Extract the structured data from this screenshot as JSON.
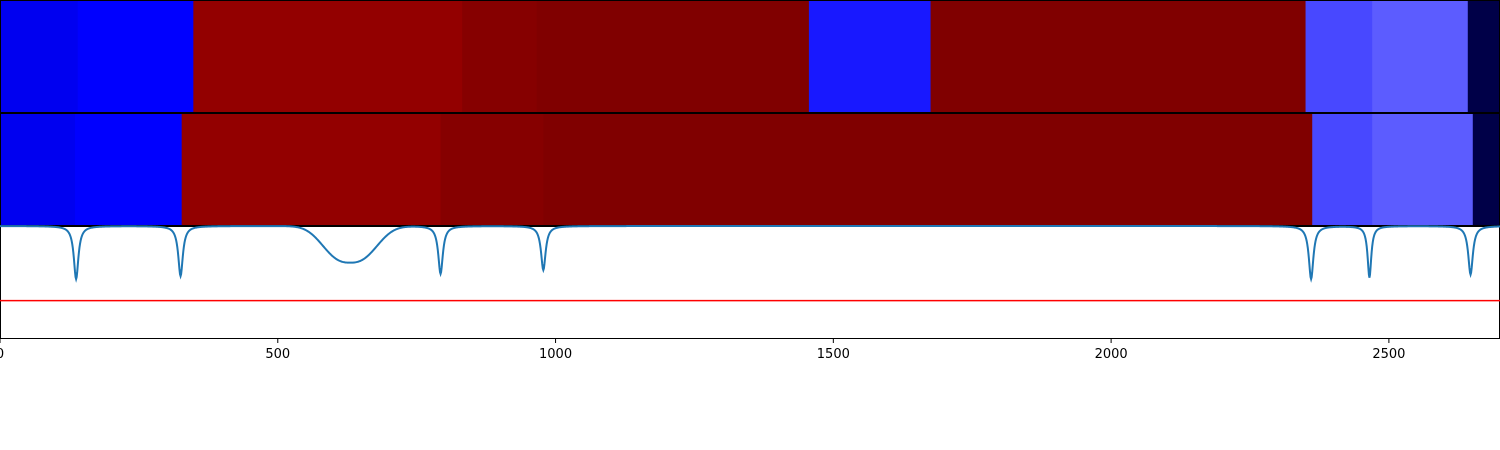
{
  "chart_data": {
    "type": "heatmap",
    "title": "",
    "xlabel": "",
    "ylabel": "",
    "xlim": [
      0,
      2700
    ],
    "x_ticks": [
      0,
      500,
      1000,
      1500,
      2000,
      2500
    ],
    "x_tick_labels": [
      "0",
      "500",
      "1000",
      "1500",
      "2000",
      "2500"
    ],
    "grid": false,
    "colors": {
      "line": "#1f77b4",
      "hline": "#ff0000",
      "border": "#000000"
    },
    "heatmap_rows": [
      {
        "segments": [
          {
            "x0": 0,
            "x1": 140,
            "color": "#0000f0"
          },
          {
            "x0": 140,
            "x1": 348,
            "color": "#0000ff"
          },
          {
            "x0": 348,
            "x1": 832,
            "color": "#930000"
          },
          {
            "x0": 832,
            "x1": 966,
            "color": "#860000"
          },
          {
            "x0": 966,
            "x1": 1456,
            "color": "#800000"
          },
          {
            "x0": 1456,
            "x1": 1675,
            "color": "#1818ff"
          },
          {
            "x0": 1675,
            "x1": 2350,
            "color": "#800000"
          },
          {
            "x0": 2350,
            "x1": 2470,
            "color": "#4848ff"
          },
          {
            "x0": 2470,
            "x1": 2642,
            "color": "#5c5cff"
          },
          {
            "x0": 2642,
            "x1": 2700,
            "color": "#000048"
          }
        ]
      },
      {
        "segments": [
          {
            "x0": 0,
            "x1": 135,
            "color": "#0000f0"
          },
          {
            "x0": 135,
            "x1": 327,
            "color": "#0000ff"
          },
          {
            "x0": 327,
            "x1": 793,
            "color": "#930000"
          },
          {
            "x0": 793,
            "x1": 978,
            "color": "#860000"
          },
          {
            "x0": 978,
            "x1": 2362,
            "color": "#800000"
          },
          {
            "x0": 2362,
            "x1": 2470,
            "color": "#4848ff"
          },
          {
            "x0": 2470,
            "x1": 2651,
            "color": "#5c5cff"
          },
          {
            "x0": 2651,
            "x1": 2700,
            "color": "#000048"
          }
        ]
      }
    ],
    "line_series": {
      "baseline": 1.0,
      "ylim": [
        -0.5,
        1.0
      ],
      "hline_y": 0.0,
      "dips": [
        {
          "center": 137,
          "depth": 0.71,
          "width": 5
        },
        {
          "center": 325,
          "depth": 0.67,
          "width": 5
        },
        {
          "center": 630,
          "depth": 0.49,
          "width": 45,
          "shape": "flat"
        },
        {
          "center": 793,
          "depth": 0.64,
          "width": 5
        },
        {
          "center": 978,
          "depth": 0.59,
          "width": 5
        },
        {
          "center": 2360,
          "depth": 0.71,
          "width": 5
        },
        {
          "center": 2465,
          "depth": 0.69,
          "width": 4
        },
        {
          "center": 2647,
          "depth": 0.65,
          "width": 5
        }
      ]
    }
  }
}
